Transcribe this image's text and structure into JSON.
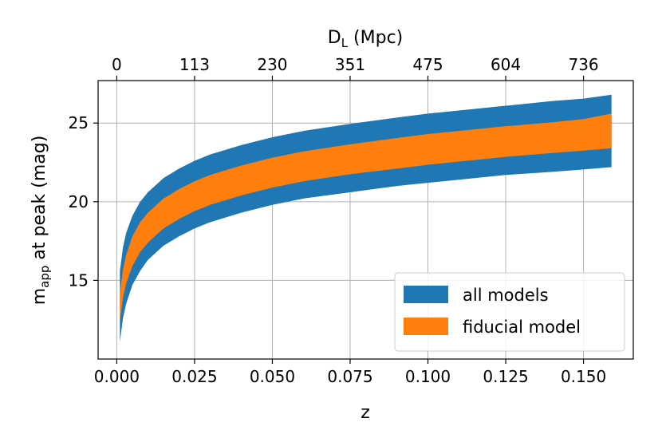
{
  "chart_data": {
    "type": "area",
    "x_axis": {
      "label": "z",
      "lim": [
        -0.006,
        0.166
      ],
      "ticks": [
        0.0,
        0.025,
        0.05,
        0.075,
        0.1,
        0.125,
        0.15
      ],
      "tick_labels": [
        "0.000",
        "0.025",
        "0.050",
        "0.075",
        "0.100",
        "0.125",
        "0.150"
      ]
    },
    "top_axis": {
      "label_main": "D",
      "label_sub": "L",
      "label_unit": " (Mpc)",
      "ticks_z": [
        0.0,
        0.025,
        0.05,
        0.075,
        0.1,
        0.125,
        0.15
      ],
      "tick_labels": [
        "0",
        "113",
        "230",
        "351",
        "475",
        "604",
        "736"
      ]
    },
    "y_axis": {
      "label_main": "m",
      "label_sub": "app",
      "label_rest": " at peak (mag)",
      "lim": [
        10.0,
        27.7
      ],
      "ticks": [
        15,
        20,
        25
      ],
      "tick_labels": [
        "15",
        "20",
        "25"
      ]
    },
    "grid": true,
    "legend_position": "lower-right",
    "series": [
      {
        "name": "all models",
        "color": "#1f77b4",
        "x": [
          0.001,
          0.002,
          0.003,
          0.005,
          0.0075,
          0.01,
          0.015,
          0.02,
          0.025,
          0.03,
          0.04,
          0.05,
          0.06,
          0.075,
          0.09,
          0.1,
          0.11,
          0.125,
          0.14,
          0.15,
          0.159
        ],
        "lower": [
          11.1,
          12.6,
          13.5,
          14.7,
          15.6,
          16.3,
          17.2,
          17.8,
          18.3,
          18.7,
          19.3,
          19.8,
          20.2,
          20.6,
          21.0,
          21.2,
          21.4,
          21.7,
          21.9,
          22.05,
          22.2
        ],
        "upper": [
          15.6,
          17.1,
          18.0,
          19.1,
          20.0,
          20.6,
          21.5,
          22.1,
          22.6,
          23.0,
          23.6,
          24.1,
          24.5,
          24.95,
          25.35,
          25.6,
          25.8,
          26.1,
          26.4,
          26.55,
          26.8
        ]
      },
      {
        "name": "fiducial model",
        "color": "#ff7f0e",
        "x": [
          0.001,
          0.002,
          0.003,
          0.005,
          0.0075,
          0.01,
          0.015,
          0.02,
          0.025,
          0.03,
          0.04,
          0.05,
          0.06,
          0.075,
          0.09,
          0.1,
          0.11,
          0.125,
          0.14,
          0.15,
          0.159
        ],
        "lower": [
          12.4,
          13.9,
          14.8,
          15.9,
          16.8,
          17.4,
          18.3,
          18.9,
          19.4,
          19.8,
          20.4,
          20.9,
          21.3,
          21.75,
          22.1,
          22.35,
          22.55,
          22.85,
          23.1,
          23.25,
          23.4
        ],
        "upper": [
          14.2,
          15.7,
          16.6,
          17.8,
          18.7,
          19.3,
          20.2,
          20.8,
          21.3,
          21.7,
          22.3,
          22.8,
          23.2,
          23.65,
          24.05,
          24.3,
          24.5,
          24.8,
          25.05,
          25.25,
          25.6
        ]
      }
    ]
  }
}
